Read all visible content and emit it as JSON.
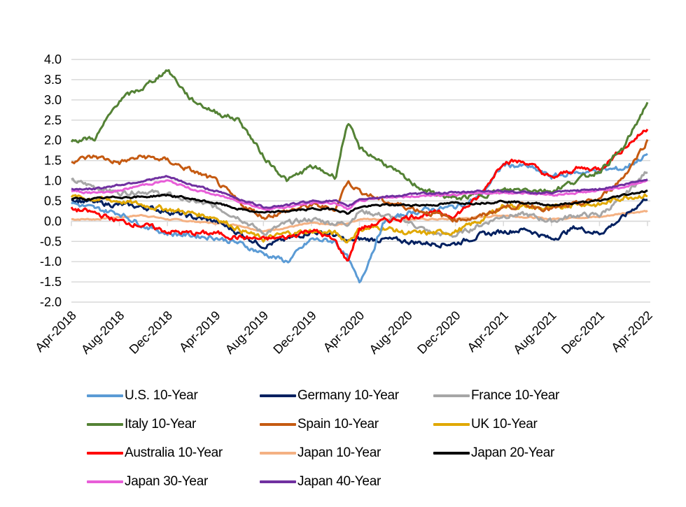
{
  "chart_data": {
    "type": "line",
    "title": "",
    "xlabel": "",
    "ylabel": "",
    "ylim": [
      -2.0,
      4.0
    ],
    "yticks": [
      "4.0",
      "3.5",
      "3.0",
      "2.5",
      "2.0",
      "1.5",
      "1.0",
      "0.5",
      "0.0",
      "-0.5",
      "-1.0",
      "-1.5",
      "-2.0"
    ],
    "ytick_values": [
      4.0,
      3.5,
      3.0,
      2.5,
      2.0,
      1.5,
      1.0,
      0.5,
      0.0,
      -0.5,
      -1.0,
      -1.5,
      -2.0
    ],
    "xticks": [
      "Apr-2018",
      "Aug-2018",
      "Dec-2018",
      "Apr-2019",
      "Aug-2019",
      "Dec-2019",
      "Apr-2020",
      "Aug-2020",
      "Dec-2020",
      "Apr-2021",
      "Aug-2021",
      "Dec-2021",
      "Apr-2022"
    ],
    "grid": true,
    "legend_position": "bottom",
    "x": [
      "Apr-2018",
      "Jun-2018",
      "Aug-2018",
      "Oct-2018",
      "Dec-2018",
      "Feb-2019",
      "Apr-2019",
      "Jun-2019",
      "Aug-2019",
      "Oct-2019",
      "Dec-2019",
      "Feb-2020",
      "Mar-2020",
      "Apr-2020",
      "Jun-2020",
      "Aug-2020",
      "Oct-2020",
      "Dec-2020",
      "Feb-2021",
      "Apr-2021",
      "Jun-2021",
      "Aug-2021",
      "Oct-2021",
      "Dec-2021",
      "Feb-2022",
      "Apr-2022"
    ],
    "series": [
      {
        "name": "U.S. 10-Year",
        "color": "#5B9BD5",
        "values": [
          0.45,
          0.3,
          0.2,
          -0.1,
          -0.3,
          -0.35,
          -0.4,
          -0.55,
          -0.8,
          -1.0,
          -0.45,
          -0.5,
          -0.9,
          -1.55,
          -0.05,
          0.2,
          0.3,
          0.35,
          0.6,
          1.4,
          1.35,
          1.1,
          1.2,
          1.25,
          1.3,
          1.65
        ]
      },
      {
        "name": "Germany 10-Year",
        "color": "#002060",
        "values": [
          0.55,
          0.45,
          0.4,
          0.35,
          0.25,
          0.1,
          0.0,
          -0.3,
          -0.6,
          -0.45,
          -0.25,
          -0.35,
          -0.5,
          -0.45,
          -0.45,
          -0.5,
          -0.55,
          -0.55,
          -0.35,
          -0.25,
          -0.2,
          -0.45,
          -0.15,
          -0.3,
          0.1,
          0.6
        ]
      },
      {
        "name": "France 10-Year",
        "color": "#A6A6A6",
        "values": [
          1.0,
          0.85,
          0.7,
          0.75,
          0.65,
          0.5,
          0.35,
          0.1,
          -0.3,
          -0.05,
          0.05,
          -0.05,
          -0.05,
          0.25,
          0.15,
          0.0,
          -0.3,
          -0.35,
          -0.1,
          0.15,
          0.15,
          0.0,
          0.15,
          0.15,
          0.6,
          1.25
        ]
      },
      {
        "name": "Italy 10-Year",
        "color": "#548235",
        "values": [
          2.0,
          2.05,
          3.0,
          3.3,
          3.75,
          3.0,
          2.7,
          2.5,
          1.6,
          1.0,
          1.35,
          1.1,
          2.45,
          1.8,
          1.45,
          1.0,
          0.7,
          0.55,
          0.65,
          0.75,
          0.8,
          0.75,
          1.0,
          1.25,
          1.8,
          2.95
        ]
      },
      {
        "name": "Spain 10-Year",
        "color": "#C55A11",
        "values": [
          1.5,
          1.6,
          1.45,
          1.6,
          1.5,
          1.25,
          1.0,
          0.45,
          0.1,
          0.25,
          0.4,
          0.3,
          1.0,
          0.75,
          0.5,
          0.35,
          0.2,
          0.05,
          0.1,
          0.35,
          0.4,
          0.3,
          0.4,
          0.55,
          1.1,
          2.0
        ]
      },
      {
        "name": "UK 10-Year",
        "color": "#E0A800",
        "values": [
          0.6,
          0.55,
          0.5,
          0.4,
          0.3,
          0.2,
          0.1,
          -0.2,
          -0.45,
          -0.3,
          -0.25,
          -0.3,
          -0.5,
          -0.2,
          -0.15,
          -0.3,
          -0.3,
          -0.25,
          0.0,
          0.4,
          0.35,
          0.3,
          0.45,
          0.4,
          0.6,
          0.65
        ]
      },
      {
        "name": "Australia 10-Year",
        "color": "#FF0000",
        "values": [
          0.3,
          0.2,
          0.0,
          -0.1,
          -0.25,
          -0.3,
          -0.3,
          -0.4,
          -0.45,
          -0.4,
          -0.2,
          -0.5,
          -1.0,
          -0.2,
          0.0,
          0.1,
          0.2,
          0.15,
          0.6,
          1.5,
          1.45,
          1.05,
          1.3,
          1.3,
          1.8,
          2.3
        ]
      },
      {
        "name": "Japan 10-Year",
        "color": "#F4B183",
        "values": [
          0.05,
          0.05,
          0.1,
          0.15,
          0.05,
          0.0,
          -0.05,
          -0.1,
          -0.25,
          -0.15,
          -0.05,
          -0.1,
          -0.05,
          0.05,
          0.05,
          0.05,
          0.05,
          0.05,
          0.1,
          0.15,
          0.1,
          0.05,
          0.1,
          0.1,
          0.2,
          0.25
        ]
      },
      {
        "name": "Japan 20-Year",
        "color": "#000000",
        "values": [
          0.55,
          0.55,
          0.6,
          0.6,
          0.65,
          0.55,
          0.45,
          0.3,
          0.2,
          0.25,
          0.3,
          0.3,
          0.2,
          0.35,
          0.4,
          0.4,
          0.4,
          0.45,
          0.45,
          0.5,
          0.45,
          0.4,
          0.45,
          0.5,
          0.65,
          0.75
        ]
      },
      {
        "name": "Japan 30-Year",
        "color": "#E85ED8",
        "values": [
          0.75,
          0.7,
          0.75,
          0.9,
          1.0,
          0.8,
          0.65,
          0.5,
          0.3,
          0.35,
          0.45,
          0.45,
          0.3,
          0.5,
          0.6,
          0.6,
          0.65,
          0.65,
          0.7,
          0.7,
          0.7,
          0.65,
          0.7,
          0.75,
          0.85,
          1.0
        ]
      },
      {
        "name": "Japan 40-Year",
        "color": "#7030A0",
        "values": [
          0.8,
          0.8,
          0.9,
          1.0,
          1.1,
          0.9,
          0.75,
          0.55,
          0.35,
          0.4,
          0.5,
          0.5,
          0.35,
          0.55,
          0.6,
          0.65,
          0.7,
          0.7,
          0.75,
          0.75,
          0.7,
          0.7,
          0.75,
          0.8,
          0.9,
          1.05
        ]
      }
    ]
  },
  "legend": {
    "items": [
      {
        "label": "U.S. 10-Year",
        "color": "#5B9BD5"
      },
      {
        "label": "Germany 10-Year",
        "color": "#002060"
      },
      {
        "label": "France 10-Year",
        "color": "#A6A6A6"
      },
      {
        "label": "Italy 10-Year",
        "color": "#548235"
      },
      {
        "label": "Spain 10-Year",
        "color": "#C55A11"
      },
      {
        "label": "UK 10-Year",
        "color": "#E0A800"
      },
      {
        "label": "Australia 10-Year",
        "color": "#FF0000"
      },
      {
        "label": "Japan 10-Year",
        "color": "#F4B183"
      },
      {
        "label": "Japan 20-Year",
        "color": "#000000"
      },
      {
        "label": "Japan 30-Year",
        "color": "#E85ED8"
      },
      {
        "label": "Japan 40-Year",
        "color": "#7030A0"
      }
    ]
  },
  "colors": {
    "grid": "#D9D9D9",
    "axis": "#D9D9D9",
    "text": "#000000"
  }
}
